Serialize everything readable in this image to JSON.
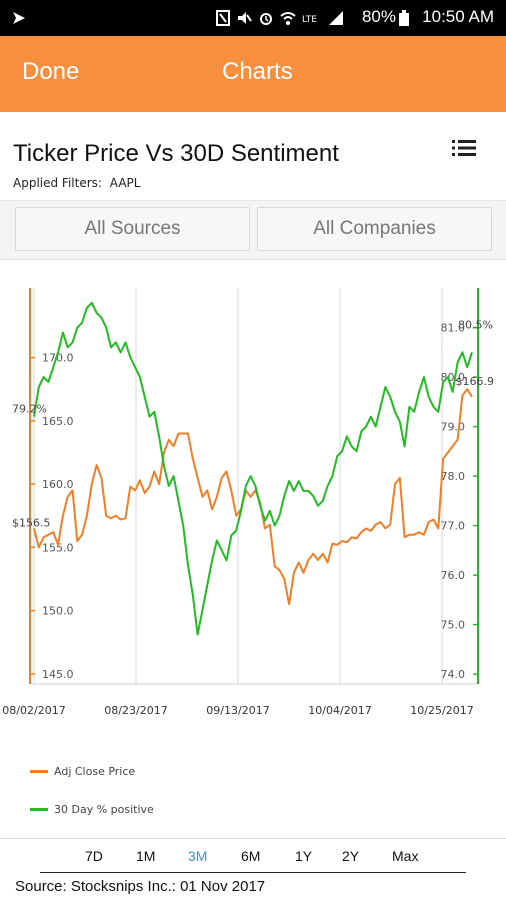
{
  "status_bar": {
    "battery": "80%",
    "time": "10:50 AM"
  },
  "appbar": {
    "done_label": "Done",
    "title": "Charts"
  },
  "header": {
    "title": "Ticker Price Vs 30D Sentiment",
    "filters_label": "Applied Filters:",
    "filters_value": "AAPL",
    "menu_icon": "list-menu-icon"
  },
  "filters": {
    "sources_label": "All Sources",
    "companies_label": "All Companies"
  },
  "range": {
    "items": [
      "7D",
      "1M",
      "3M",
      "6M",
      "1Y",
      "2Y",
      "Max"
    ],
    "active": "3M",
    "active_color": "#3a8fd6"
  },
  "source_text": "Source: Stocksnips Inc.: 01 Nov 2017",
  "colors": {
    "accent": "#f78f3f",
    "price_line": "#f07e26",
    "sentiment_line": "#22bb22"
  },
  "chart_data": {
    "type": "line",
    "x_labels": [
      "08/02/2017",
      "08/23/2017",
      "09/13/2017",
      "10/04/2017",
      "10/25/2017"
    ],
    "left_axis": {
      "ticks": [
        "145.0",
        "150.0",
        "155.0",
        "160.0",
        "165.0",
        "170.0"
      ],
      "range": [
        144.2,
        175.5
      ]
    },
    "right_axis": {
      "ticks": [
        "74.0",
        "75.0",
        "76.0",
        "77.0",
        "78.0",
        "79.0",
        "80.0",
        "81.0"
      ],
      "range": [
        73.8,
        81.8
      ]
    },
    "annotations": {
      "left_start": "$156.5",
      "left_end": "$166.9",
      "right_start": "79.2%",
      "right_end": "80.5%"
    },
    "series": [
      {
        "name": "Adj Close Price",
        "axis": "left",
        "values": [
          156.5,
          155.0,
          155.8,
          156.0,
          156.2,
          155.2,
          157.5,
          159.0,
          159.5,
          155.5,
          156.0,
          157.5,
          160.0,
          161.5,
          160.5,
          157.5,
          157.3,
          157.5,
          157.2,
          157.3,
          159.8,
          159.5,
          160.3,
          159.3,
          159.8,
          161.0,
          160.0,
          162.5,
          163.5,
          163.0,
          164.0,
          164.0,
          164.0,
          162.0,
          160.5,
          159.0,
          159.5,
          158.0,
          159.0,
          160.5,
          161.0,
          159.5,
          157.5,
          158.0,
          159.5,
          159.0,
          159.5,
          158.5,
          156.5,
          156.8,
          153.5,
          153.2,
          152.5,
          150.5,
          153.0,
          153.8,
          153.0,
          154.0,
          154.5,
          154.0,
          154.5,
          153.8,
          155.3,
          155.2,
          155.5,
          155.4,
          155.8,
          155.7,
          156.2,
          156.5,
          156.3,
          156.8,
          157.0,
          156.5,
          156.8,
          160.0,
          160.5,
          155.8,
          156.0,
          156.0,
          156.2,
          156.0,
          157.0,
          157.2,
          156.5,
          162.0,
          162.5,
          163.0,
          163.5,
          167.0,
          167.5,
          166.9
        ]
      },
      {
        "name": "30 Day % positive",
        "axis": "right",
        "values": [
          79.2,
          79.8,
          80.0,
          79.9,
          80.2,
          80.5,
          80.9,
          80.6,
          80.7,
          81.0,
          81.1,
          81.4,
          81.5,
          81.3,
          81.2,
          81.0,
          80.6,
          80.7,
          80.5,
          80.7,
          80.4,
          80.2,
          80.0,
          79.6,
          79.2,
          79.3,
          78.8,
          78.2,
          77.8,
          78.0,
          77.5,
          77.0,
          76.2,
          75.6,
          74.8,
          75.3,
          75.8,
          76.3,
          76.7,
          76.5,
          76.3,
          76.8,
          76.9,
          77.3,
          77.8,
          78.0,
          77.8,
          77.4,
          77.1,
          77.3,
          77.0,
          77.2,
          77.6,
          77.9,
          77.7,
          77.9,
          77.7,
          77.7,
          77.6,
          77.4,
          77.5,
          77.8,
          78.0,
          78.4,
          78.5,
          78.8,
          78.6,
          78.5,
          78.9,
          79.0,
          79.2,
          79.0,
          79.4,
          79.8,
          79.6,
          79.3,
          79.1,
          78.6,
          79.4,
          79.3,
          79.7,
          80.0,
          79.6,
          79.4,
          79.3,
          79.9,
          80.0,
          79.7,
          80.3,
          80.5,
          80.2,
          80.5
        ]
      }
    ],
    "grid": "vertical",
    "legend_position": "bottom-left"
  }
}
